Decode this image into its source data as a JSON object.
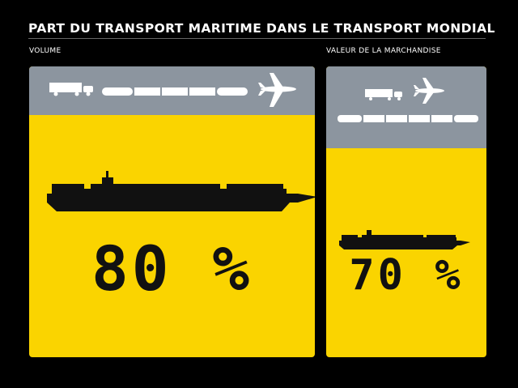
{
  "title": "PART DU TRANSPORT MARITIME DANS LE TRANSPORT MONDIAL",
  "colors": {
    "background": "#000000",
    "sea_fill": "#fad400",
    "other_fill": "#8c959f",
    "text": "#ffffff",
    "ink": "#111111"
  },
  "icons": {
    "truck": "truck-icon",
    "train": "train-icon",
    "plane": "airplane-icon",
    "ship": "container-ship-icon"
  },
  "chart_data": [
    {
      "type": "bar",
      "xlabel": "VOLUME",
      "categories": [
        "maritime",
        "autres"
      ],
      "values": [
        80,
        20
      ],
      "value_label": "80 %"
    },
    {
      "type": "bar",
      "xlabel": "VALEUR DE LA MARCHANDISE",
      "categories": [
        "maritime",
        "autres"
      ],
      "values": [
        70,
        30
      ],
      "value_label": "70 %"
    }
  ]
}
